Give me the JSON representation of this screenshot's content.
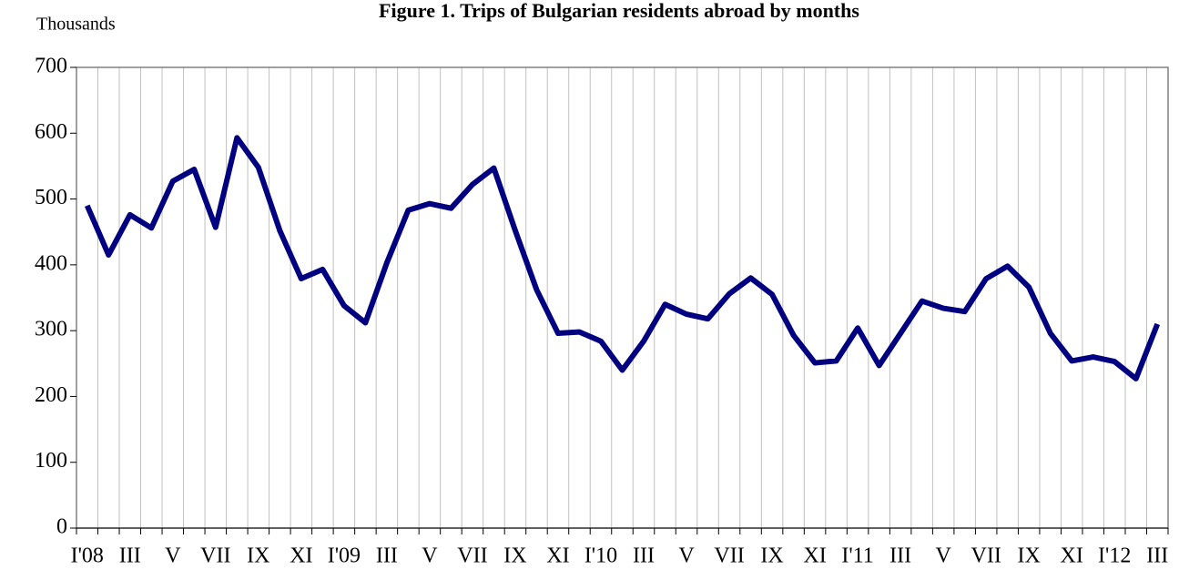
{
  "chart_data": {
    "type": "line",
    "title": "Figure 1. Trips of Bulgarian residents abroad by months",
    "y_label": "Thousands",
    "categories": [
      "I'08",
      null,
      "III",
      null,
      "V",
      null,
      "VII",
      null,
      "IX",
      null,
      "XI",
      null,
      "I'09",
      null,
      "III",
      null,
      "V",
      null,
      "VII",
      null,
      "IX",
      null,
      "XI",
      null,
      "I'10",
      null,
      "III",
      null,
      "V",
      null,
      "VII",
      null,
      "IX",
      null,
      "XI",
      null,
      "I'11",
      null,
      "III",
      null,
      "V",
      null,
      "VII",
      null,
      "IX",
      null,
      "XI",
      null,
      "I'12",
      null,
      "III"
    ],
    "values": [
      490,
      415,
      476,
      456,
      527,
      545,
      457,
      593,
      548,
      452,
      379,
      393,
      338,
      312,
      403,
      483,
      493,
      486,
      522,
      547,
      452,
      362,
      296,
      298,
      284,
      240,
      284,
      340,
      325,
      318,
      356,
      380,
      355,
      293,
      251,
      254,
      304,
      247,
      296,
      345,
      334,
      329,
      379,
      398,
      366,
      296,
      254,
      260,
      253,
      227,
      310
    ],
    "color": "#000080",
    "ylim": [
      0,
      700
    ],
    "yticks": [
      0,
      100,
      200,
      300,
      400,
      500,
      600,
      700
    ],
    "grid": true
  }
}
